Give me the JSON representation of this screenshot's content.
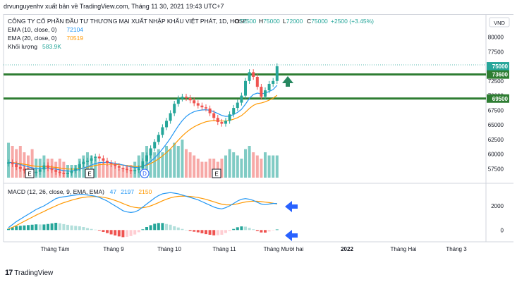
{
  "caption": "drvunguyenhv xuất bản về TradingView.com, Tháng 11 30, 2021 19:43 UTC+7",
  "brand": {
    "logo_mark": "17",
    "name": "TradingView"
  },
  "currency_button": "VND",
  "price_pane": {
    "title": "CÔNG TY CỔ PHẦN ĐẦU TƯ THƯƠNG MẠI XUẤT NHẬP KHẨU VIỆT PHÁT, 1D, HOSE",
    "ohlc": [
      {
        "label": "O",
        "value": "72500"
      },
      {
        "label": "H",
        "value": "75000"
      },
      {
        "label": "L",
        "value": "72000"
      },
      {
        "label": "C",
        "value": "75000"
      },
      {
        "label": "",
        "value": "+2500 (+3.45%)"
      }
    ],
    "legend": [
      {
        "label": "EMA (10, close, 0)",
        "value": "72104",
        "color": "#2196f3"
      },
      {
        "label": "EMA (20, close, 0)",
        "value": "70519",
        "color": "#ff9800"
      },
      {
        "label": "Khối lượng",
        "value": "583.9K",
        "color": "#26a69a"
      }
    ],
    "y_ticks": [
      "80000",
      "77500",
      "75000",
      "72500",
      "70000",
      "67500",
      "65000",
      "62500",
      "60000",
      "57500"
    ],
    "y_tick_values": [
      80000,
      77500,
      75000,
      72500,
      70000,
      67500,
      65000,
      62500,
      60000,
      57500
    ],
    "price_labels": [
      {
        "text": "75000",
        "value": 75000,
        "color": "#26a69a"
      },
      {
        "text": "73600",
        "value": 73600,
        "color": "#2e7d32"
      },
      {
        "text": "69500",
        "value": 69500,
        "color": "#2e7d32"
      }
    ],
    "horizontal_levels": [
      73600,
      69500
    ],
    "event_markers": [
      "E",
      "E",
      "D",
      "E"
    ]
  },
  "macd_pane": {
    "legend_label": "MACD (12, 26, close, 9, EMA, EMA)",
    "legend_values": [
      {
        "value": "47",
        "color": "#2196f3"
      },
      {
        "value": "2197",
        "color": "#2196f3"
      },
      {
        "value": "2150",
        "color": "#ff9800"
      }
    ],
    "y_ticks": [
      "2000",
      "0"
    ],
    "y_tick_values": [
      2000,
      0
    ]
  },
  "x_axis": {
    "labels": [
      "Tháng Tám",
      "Tháng 9",
      "Tháng 10",
      "Tháng 11",
      "Tháng Mười hai",
      "2022",
      "Tháng Hai",
      "Tháng 3"
    ]
  },
  "chart_data": {
    "type": "candlestick",
    "series": [
      {
        "name": "price_close",
        "values": [
          58600,
          58300,
          57800,
          57500,
          57200,
          57000,
          56800,
          57000,
          57400,
          58100,
          57600,
          57300,
          57000,
          56800,
          56600,
          56800,
          57200,
          57600,
          58300,
          58700,
          58900,
          59300,
          59600,
          59300,
          58900,
          58500,
          58300,
          58000,
          57700,
          57500,
          57300,
          57100,
          57300,
          57600,
          58800,
          59800,
          61000,
          62100,
          63300,
          64600,
          65700,
          67000,
          68600,
          69500,
          69800,
          69600,
          69200,
          68700,
          68300,
          68000,
          67800,
          67000,
          66200,
          65500,
          65200,
          65700,
          66800,
          67900,
          68800,
          70000,
          72500,
          74000,
          73200,
          71500,
          69800,
          70900,
          72000,
          72500,
          75000
        ]
      },
      {
        "name": "volume",
        "values": [
          0.55,
          0.5,
          0.45,
          0.5,
          0.4,
          0.35,
          0.45,
          0.3,
          0.3,
          0.35,
          0.3,
          0.3,
          0.25,
          0.3,
          0.25,
          0.2,
          0.2,
          0.2,
          0.3,
          0.35,
          0.4,
          0.35,
          0.3,
          0.25,
          0.25,
          0.2,
          0.2,
          0.2,
          0.15,
          0.15,
          0.2,
          0.2,
          0.25,
          0.35,
          0.4,
          0.5,
          0.45,
          0.4,
          0.45,
          0.4,
          0.5,
          0.45,
          0.55,
          0.5,
          0.6,
          0.45,
          0.4,
          0.35,
          0.3,
          0.25,
          0.25,
          0.3,
          0.3,
          0.25,
          0.3,
          0.35,
          0.45,
          0.4,
          0.35,
          0.3,
          0.45,
          0.5,
          0.4,
          0.35,
          0.3,
          0.4,
          0.35,
          0.35,
          0.35
        ]
      },
      {
        "name": "macd",
        "values": [
          200,
          450,
          700,
          900,
          1100,
          1300,
          1500,
          1700,
          1850,
          2000,
          2200,
          2400,
          2600,
          2700,
          2750,
          2800,
          2850,
          2900,
          2950,
          2950,
          2900,
          2850,
          2800,
          2700,
          2550,
          2400,
          2200,
          2000,
          1800,
          1600,
          1500,
          1450,
          1500,
          1650,
          1900,
          2150,
          2400,
          2650,
          2850,
          3000,
          3050,
          3100,
          3050,
          3000,
          2900,
          2800,
          2700,
          2600,
          2500,
          2350,
          2200,
          2050,
          1900,
          1800,
          1750,
          1850,
          2000,
          2200,
          2400,
          2550,
          2600,
          2550,
          2450,
          2300,
          2150,
          2100,
          2150,
          2200,
          2197
        ]
      },
      {
        "name": "signal",
        "values": [
          100,
          220,
          380,
          550,
          720,
          890,
          1060,
          1230,
          1390,
          1540,
          1700,
          1850,
          2000,
          2140,
          2260,
          2370,
          2470,
          2560,
          2640,
          2700,
          2740,
          2760,
          2770,
          2750,
          2710,
          2650,
          2560,
          2450,
          2330,
          2190,
          2060,
          1950,
          1870,
          1830,
          1840,
          1900,
          2000,
          2130,
          2270,
          2420,
          2550,
          2660,
          2740,
          2790,
          2810,
          2800,
          2780,
          2740,
          2690,
          2620,
          2540,
          2440,
          2340,
          2230,
          2140,
          2090,
          2080,
          2110,
          2170,
          2250,
          2320,
          2370,
          2390,
          2380,
          2350,
          2310,
          2270,
          2220,
          2150
        ]
      },
      {
        "name": "histogram",
        "values": [
          100,
          230,
          320,
          350,
          380,
          410,
          440,
          470,
          460,
          460,
          500,
          550,
          600,
          560,
          490,
          430,
          380,
          340,
          310,
          250,
          160,
          90,
          30,
          -50,
          -160,
          -250,
          -360,
          -450,
          -530,
          -590,
          -560,
          -500,
          -370,
          -180,
          60,
          250,
          400,
          520,
          580,
          580,
          500,
          440,
          310,
          210,
          90,
          0,
          -80,
          -140,
          -190,
          -270,
          -340,
          -390,
          -440,
          -430,
          -390,
          -240,
          -80,
          90,
          230,
          300,
          280,
          180,
          60,
          -80,
          -200,
          -210,
          -120,
          -20,
          47
        ]
      }
    ],
    "ylim": [
      56000,
      81500
    ],
    "macd_ylim": [
      -800,
      3400
    ],
    "x_labels": [
      "Tháng Tám",
      "Tháng 9",
      "Tháng 10",
      "Tháng 11",
      "Tháng Mười hai",
      "2022",
      "Tháng Hai",
      "Tháng 3"
    ],
    "title": "CÔNG TY CỔ PHẦN ĐẦU TƯ THƯƠNG MẠI XUẤT NHẬP KHẨU VIỆT PHÁT, 1D, HOSE",
    "colors": {
      "up": "#26a69a",
      "down": "#ef5350",
      "ema10": "#2196f3",
      "ema20": "#ff9800",
      "level": "#2e7d32",
      "arrow_blue": "#2962ff"
    },
    "legend": "top-left",
    "grid": false
  }
}
